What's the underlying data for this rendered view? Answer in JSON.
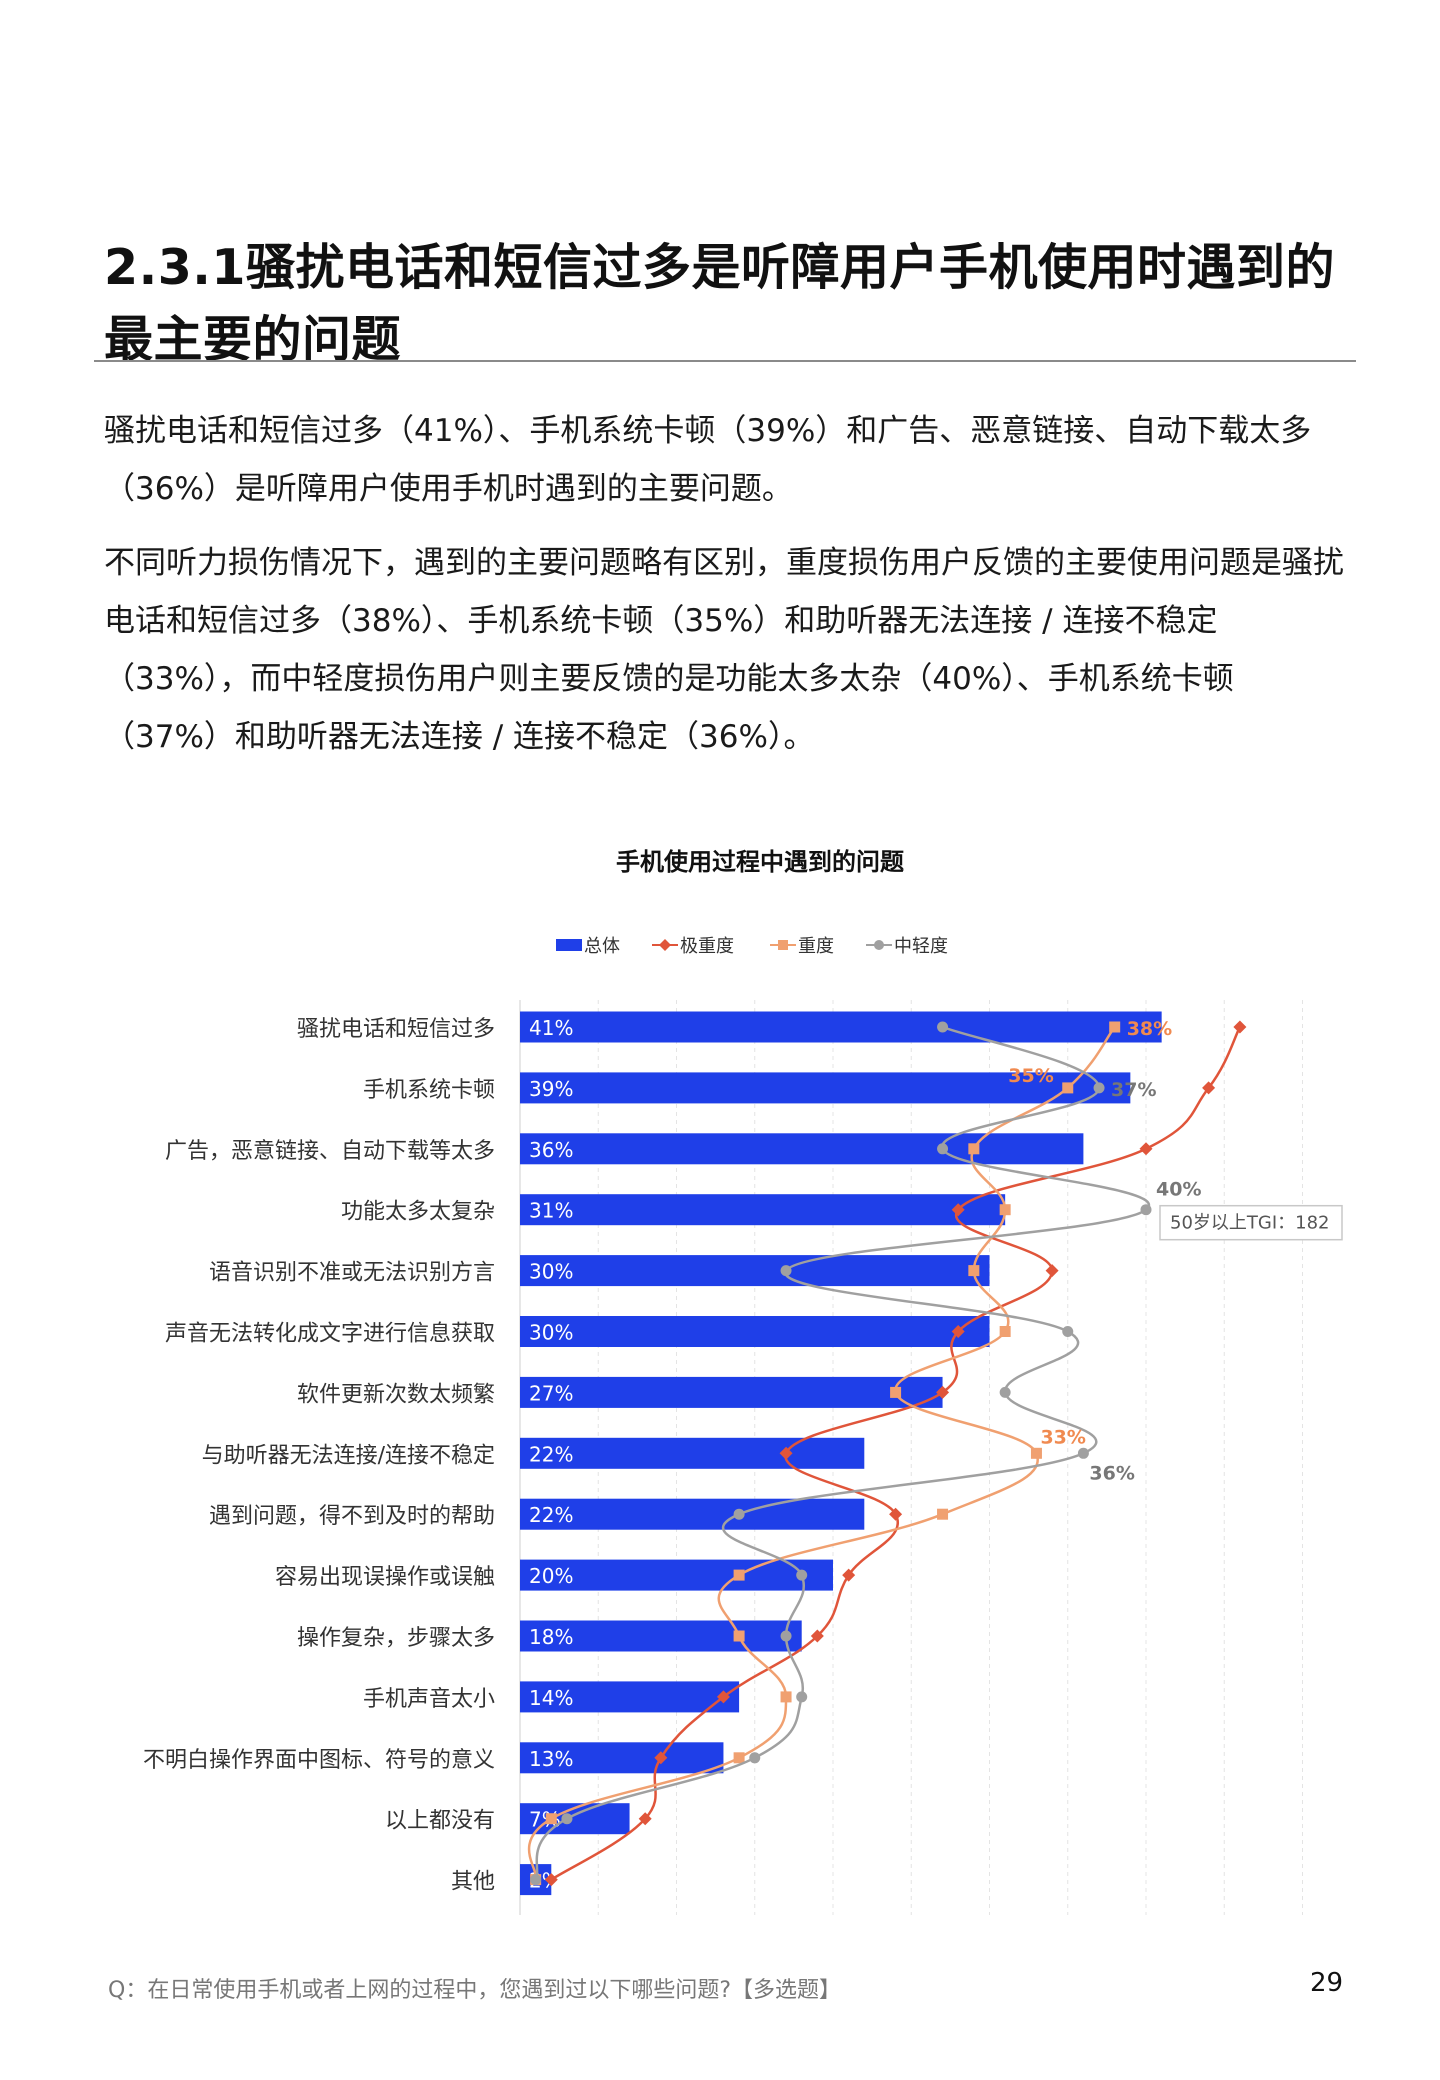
{
  "page": {
    "heading": "2.3.1骚扰电话和短信过多是听障用户手机使用时遇到的最主要的问题",
    "para1": "骚扰电话和短信过多（41%）、手机系统卡顿（39%）和广告、恶意链接、自动下载太多（36%）是听障用户使用手机时遇到的主要问题。",
    "para2": "不同听力损伤情况下，遇到的主要问题略有区别，重度损伤用户反馈的主要使用问题是骚扰电话和短信过多（38%）、手机系统卡顿（35%）和助听器无法连接 / 连接不稳定（33%），而中轻度损伤用户则主要反馈的是功能太多太杂（40%）、手机系统卡顿（37%）和助听器无法连接 / 连接不稳定（36%）。",
    "footer_question": "Q：在日常使用手机或者上网的过程中，您遇到过以下哪些问题?【多选题】",
    "page_number": "29"
  },
  "chart_data": {
    "type": "bar",
    "title": "手机使用过程中遇到的问题",
    "categories": [
      "骚扰电话和短信过多",
      "手机系统卡顿",
      "广告，恶意链接、自动下载等太多",
      "功能太多太复杂",
      "语音识别不准或无法识别方言",
      "声音无法转化成文字进行信息获取",
      "软件更新次数太频繁",
      "与助听器无法连接/连接不稳定",
      "遇到问题，得不到及时的帮助",
      "容易出现误操作或误触",
      "操作复杂，步骤太多",
      "手机声音太小",
      "不明白操作界面中图标、符号的意义",
      "以上都没有",
      "其他"
    ],
    "series": [
      {
        "name": "总体",
        "type": "bar",
        "color": "#1f3fe8",
        "values": [
          41,
          39,
          36,
          31,
          30,
          30,
          27,
          22,
          22,
          20,
          18,
          14,
          13,
          7,
          2
        ]
      },
      {
        "name": "极重度",
        "type": "line",
        "color": "#e0553a",
        "marker": "diamond",
        "values": [
          46,
          44,
          40,
          28,
          34,
          28,
          27,
          17,
          24,
          21,
          19,
          13,
          9,
          8,
          2
        ]
      },
      {
        "name": "重度",
        "type": "line",
        "color": "#f0a070",
        "marker": "square",
        "values": [
          38,
          35,
          29,
          31,
          29,
          31,
          24,
          33,
          27,
          14,
          14,
          17,
          14,
          2,
          1
        ]
      },
      {
        "name": "中轻度",
        "type": "line",
        "color": "#a0a0a0",
        "marker": "circle",
        "values": [
          27,
          37,
          27,
          40,
          17,
          35,
          31,
          36,
          14,
          18,
          17,
          18,
          15,
          3,
          1
        ]
      }
    ],
    "bar_labels": [
      "41%",
      "39%",
      "36%",
      "31%",
      "30%",
      "30%",
      "27%",
      "22%",
      "22%",
      "20%",
      "18%",
      "14%",
      "13%",
      "7%",
      "2%"
    ],
    "annotations": [
      {
        "series": "重度",
        "category_index": 0,
        "text": "38%"
      },
      {
        "series": "重度",
        "category_index": 1,
        "text": "35%"
      },
      {
        "series": "中轻度",
        "category_index": 1,
        "text": "37%"
      },
      {
        "series": "中轻度",
        "category_index": 3,
        "text": "40%"
      },
      {
        "series": "重度",
        "category_index": 7,
        "text": "33%"
      },
      {
        "series": "中轻度",
        "category_index": 7,
        "text": "36%"
      }
    ],
    "callout": {
      "text": "50岁以上TGI：182",
      "series": "中轻度",
      "category_index": 3
    },
    "xlim": [
      0,
      50
    ],
    "grid": true,
    "legend": "top"
  }
}
